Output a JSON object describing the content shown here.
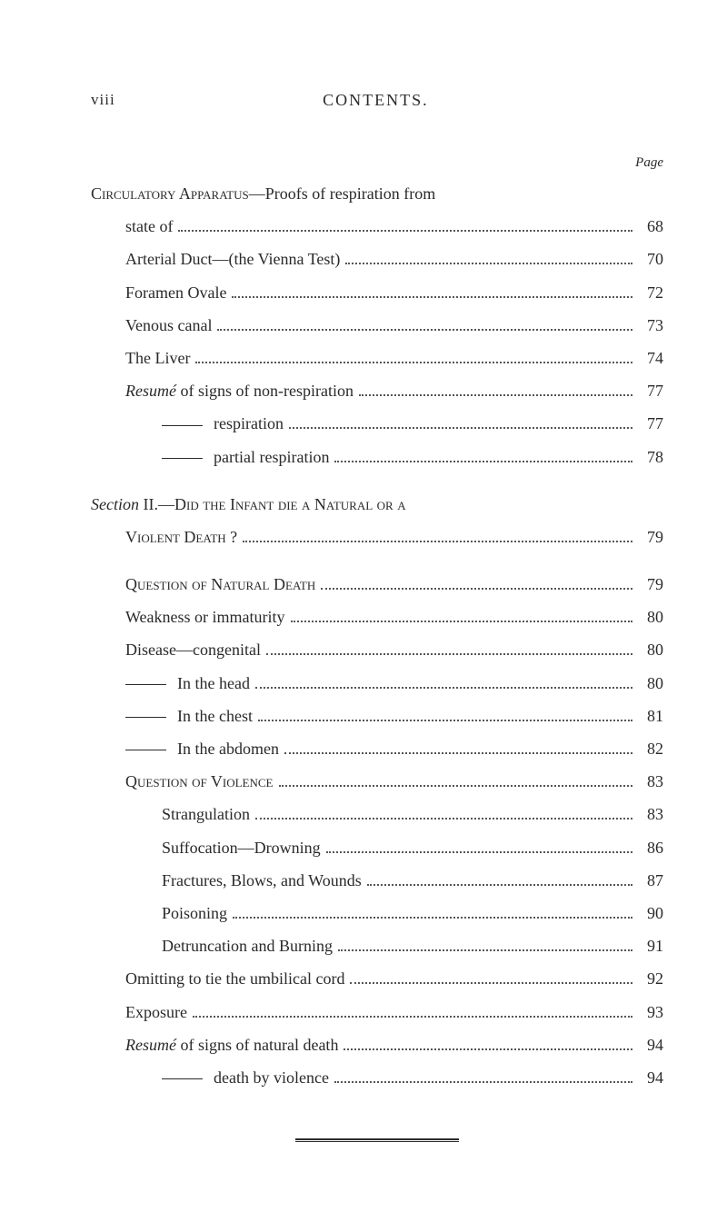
{
  "header": {
    "page_number": "viii",
    "section_title": "CONTENTS."
  },
  "page_label": "Page",
  "entries": [
    {
      "type": "heading",
      "text_parts": [
        {
          "style": "small-caps",
          "text": "Circulatory Apparatus"
        },
        {
          "style": "normal",
          "text": "—Proofs of respiration from"
        }
      ],
      "indent": 0,
      "no_page": true
    },
    {
      "type": "entry",
      "label": "state of",
      "page": "68",
      "indent": 1
    },
    {
      "type": "entry",
      "label": "Arterial Duct—(the Vienna Test)",
      "page": "70",
      "indent": 1
    },
    {
      "type": "entry",
      "label": "Foramen Ovale",
      "page": "72",
      "indent": 1
    },
    {
      "type": "entry",
      "label": "Venous canal",
      "page": "73",
      "indent": 1
    },
    {
      "type": "entry",
      "label": "The Liver",
      "page": "74",
      "indent": 1
    },
    {
      "type": "entry",
      "label_parts": [
        {
          "style": "italic",
          "text": "Resumé"
        },
        {
          "style": "normal",
          "text": " of signs of non-respiration"
        }
      ],
      "page": "77",
      "indent": 1
    },
    {
      "type": "entry",
      "has_dash": true,
      "label": "respiration",
      "page": "77",
      "indent": 2
    },
    {
      "type": "entry",
      "has_dash": true,
      "label": "partial respiration",
      "page": "78",
      "indent": 2
    },
    {
      "type": "spacer"
    },
    {
      "type": "heading",
      "text_parts": [
        {
          "style": "italic",
          "text": "Section"
        },
        {
          "style": "normal",
          "text": " II.—"
        },
        {
          "style": "small-caps",
          "text": "Did the Infant die a Natural or a"
        }
      ],
      "indent": 0,
      "no_page": true
    },
    {
      "type": "entry",
      "label_parts": [
        {
          "style": "small-caps",
          "text": "Violent Death ?"
        }
      ],
      "page": "79",
      "indent": 1
    },
    {
      "type": "spacer"
    },
    {
      "type": "entry",
      "label_parts": [
        {
          "style": "small-caps",
          "text": "Question of Natural Death"
        }
      ],
      "page": "79",
      "indent": 1
    },
    {
      "type": "entry",
      "label": "Weakness or immaturity",
      "page": "80",
      "indent": 1
    },
    {
      "type": "entry",
      "label": "Disease—congenital",
      "page": "80",
      "indent": 1
    },
    {
      "type": "entry",
      "has_dash": true,
      "label": "In the head",
      "page": "80",
      "indent": 1
    },
    {
      "type": "entry",
      "has_dash": true,
      "label": "In the chest",
      "page": "81",
      "indent": 1
    },
    {
      "type": "entry",
      "has_dash": true,
      "label": "In the abdomen",
      "page": "82",
      "indent": 1
    },
    {
      "type": "entry",
      "label_parts": [
        {
          "style": "small-caps",
          "text": "Question of Violence"
        }
      ],
      "page": "83",
      "indent": 1
    },
    {
      "type": "entry",
      "label": "Strangulation",
      "page": "83",
      "indent": 2
    },
    {
      "type": "entry",
      "label": "Suffocation—Drowning",
      "page": "86",
      "indent": 2
    },
    {
      "type": "entry",
      "label": "Fractures, Blows, and Wounds",
      "page": "87",
      "indent": 2
    },
    {
      "type": "entry",
      "label": "Poisoning",
      "page": "90",
      "indent": 2
    },
    {
      "type": "entry",
      "label": "Detruncation and Burning",
      "page": "91",
      "indent": 2
    },
    {
      "type": "entry",
      "label": "Omitting to tie the umbilical cord",
      "page": "92",
      "indent": 1
    },
    {
      "type": "entry",
      "label": "Exposure",
      "page": "93",
      "indent": 1
    },
    {
      "type": "entry",
      "label_parts": [
        {
          "style": "italic",
          "text": "Resumé"
        },
        {
          "style": "normal",
          "text": " of signs of natural death"
        }
      ],
      "page": "94",
      "indent": 1
    },
    {
      "type": "entry",
      "has_dash": true,
      "label": "death by violence",
      "page": "94",
      "indent": 2,
      "dash_indent": 2
    }
  ],
  "colors": {
    "background": "#ffffff",
    "text": "#2a2a2a",
    "dots": "#555555"
  },
  "typography": {
    "base_fontsize_pt": 18,
    "page_label_fontsize_pt": 15,
    "font_family": "Times New Roman serif"
  }
}
